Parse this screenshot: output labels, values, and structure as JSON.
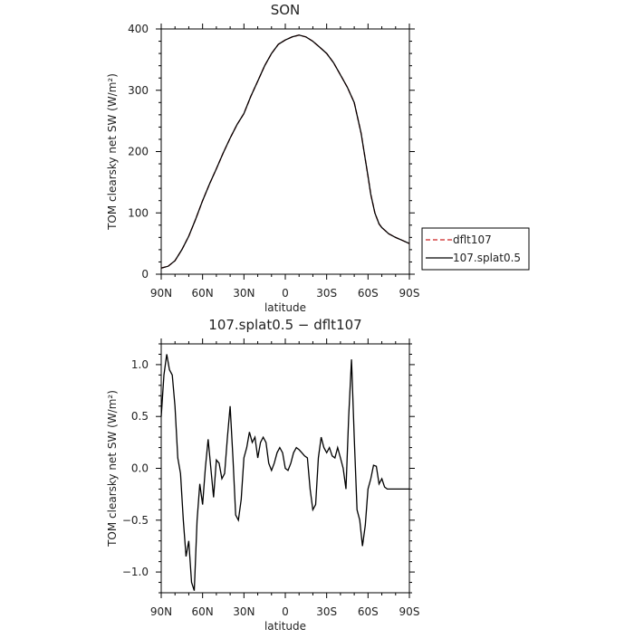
{
  "chart_data": [
    {
      "type": "line",
      "title": "SON",
      "xlabel": "latitude",
      "ylabel": "TOM clearsky net SW (W/m²)",
      "xlim": [
        90,
        -90
      ],
      "ylim": [
        0,
        400
      ],
      "xticks": [
        90,
        60,
        30,
        0,
        -30,
        -60,
        -90
      ],
      "xtick_labels": [
        "90N",
        "60N",
        "30N",
        "0",
        "30S",
        "60S",
        "90S"
      ],
      "yticks": [
        0,
        100,
        200,
        300,
        400
      ],
      "ytick_labels": [
        "0",
        "100",
        "200",
        "300",
        "400"
      ],
      "legend": {
        "placement": "right",
        "entries": [
          "dflt107",
          "107.splat0.5"
        ]
      },
      "series": [
        {
          "name": "dflt107",
          "color": "#cc2222",
          "dash": true,
          "x": [
            90,
            85,
            80,
            75,
            70,
            65,
            60,
            55,
            50,
            45,
            40,
            35,
            30,
            25,
            20,
            15,
            10,
            5,
            0,
            -5,
            -10,
            -15,
            -20,
            -25,
            -30,
            -35,
            -40,
            -45,
            -50,
            -55,
            -60,
            -62,
            -65,
            -68,
            -70,
            -72,
            -75,
            -80,
            -85,
            -90
          ],
          "y": [
            10,
            13,
            22,
            40,
            62,
            90,
            120,
            147,
            172,
            198,
            222,
            244,
            262,
            290,
            315,
            340,
            360,
            375,
            382,
            387,
            390,
            387,
            380,
            370,
            360,
            345,
            325,
            305,
            280,
            230,
            160,
            130,
            100,
            82,
            76,
            72,
            66,
            60,
            55,
            50
          ]
        },
        {
          "name": "107.splat0.5",
          "color": "#000000",
          "dash": false,
          "x": [
            90,
            85,
            80,
            75,
            70,
            65,
            60,
            55,
            50,
            45,
            40,
            35,
            30,
            25,
            20,
            15,
            10,
            5,
            0,
            -5,
            -10,
            -15,
            -20,
            -25,
            -30,
            -35,
            -40,
            -45,
            -50,
            -55,
            -60,
            -62,
            -65,
            -68,
            -70,
            -72,
            -75,
            -80,
            -85,
            -90
          ],
          "y": [
            10,
            13,
            22,
            40,
            62,
            90,
            120,
            147,
            172,
            198,
            222,
            244,
            262,
            290,
            315,
            340,
            360,
            375,
            382,
            387,
            390,
            387,
            380,
            370,
            360,
            345,
            325,
            305,
            280,
            230,
            160,
            130,
            100,
            82,
            76,
            72,
            66,
            60,
            55,
            50
          ]
        }
      ]
    },
    {
      "type": "line",
      "title": "107.splat0.5 − dflt107",
      "xlabel": "latitude",
      "ylabel": "TOM clearsky net SW (W/m²)",
      "xlim": [
        90,
        -90
      ],
      "ylim": [
        -1.2,
        1.2
      ],
      "xticks": [
        90,
        60,
        30,
        0,
        -30,
        -60,
        -90
      ],
      "xtick_labels": [
        "90N",
        "60N",
        "30N",
        "0",
        "30S",
        "60S",
        "90S"
      ],
      "yticks": [
        1.0,
        0.5,
        0.0,
        -0.5,
        -1.0
      ],
      "ytick_labels": [
        "1.0",
        "0.5",
        "0.0",
        "−0.5",
        "−1.0"
      ],
      "series": [
        {
          "name": "107.splat0.5 − dflt107",
          "color": "#000000",
          "dash": false,
          "x": [
            90,
            88,
            86,
            84,
            82,
            80,
            78,
            76,
            74,
            72,
            70,
            68,
            66,
            64,
            62,
            60,
            58,
            56,
            54,
            52,
            50,
            48,
            46,
            44,
            42,
            40,
            38,
            36,
            34,
            32,
            30,
            28,
            26,
            24,
            22,
            20,
            18,
            16,
            14,
            12,
            10,
            8,
            6,
            4,
            2,
            0,
            -2,
            -4,
            -6,
            -8,
            -10,
            -12,
            -14,
            -16,
            -18,
            -20,
            -22,
            -24,
            -26,
            -28,
            -30,
            -32,
            -34,
            -36,
            -38,
            -40,
            -42,
            -44,
            -46,
            -48,
            -50,
            -52,
            -54,
            -56,
            -58,
            -60,
            -62,
            -64,
            -66,
            -68,
            -70,
            -72,
            -74,
            -76,
            -78,
            -80,
            -82,
            -84,
            -86,
            -88,
            -90
          ],
          "y": [
            0.5,
            0.9,
            1.1,
            0.95,
            0.9,
            0.6,
            0.1,
            -0.05,
            -0.5,
            -0.85,
            -0.7,
            -1.1,
            -1.18,
            -0.5,
            -0.15,
            -0.35,
            0.0,
            0.28,
            0.0,
            -0.28,
            0.08,
            0.05,
            -0.1,
            -0.05,
            0.3,
            0.6,
            0.1,
            -0.45,
            -0.5,
            -0.3,
            0.1,
            0.2,
            0.35,
            0.25,
            0.3,
            0.1,
            0.25,
            0.3,
            0.25,
            0.05,
            -0.02,
            0.05,
            0.15,
            0.2,
            0.15,
            0.0,
            -0.02,
            0.05,
            0.15,
            0.2,
            0.18,
            0.15,
            0.12,
            0.1,
            -0.2,
            -0.4,
            -0.35,
            0.1,
            0.3,
            0.2,
            0.15,
            0.2,
            0.12,
            0.1,
            0.2,
            0.1,
            0.0,
            -0.2,
            0.5,
            1.05,
            0.3,
            -0.4,
            -0.5,
            -0.75,
            -0.55,
            -0.2,
            -0.1,
            0.03,
            0.02,
            -0.15,
            -0.1,
            -0.18,
            -0.2,
            -0.2,
            -0.2,
            -0.2,
            -0.2,
            -0.2,
            -0.2,
            -0.2,
            -0.2
          ]
        }
      ]
    }
  ]
}
